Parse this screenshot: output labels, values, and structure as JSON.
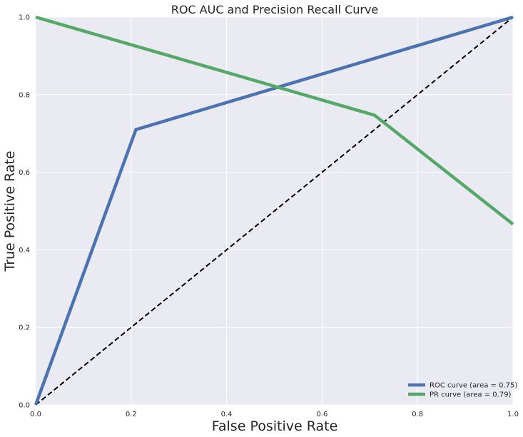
{
  "chart_data": {
    "type": "line",
    "title": "ROC AUC and Precision Recall Curve",
    "xlabel": "False Positive Rate",
    "ylabel": "True Positive Rate",
    "xlim": [
      0,
      1
    ],
    "ylim": [
      0,
      1
    ],
    "grid": true,
    "legend_position": "lower-right",
    "x_ticks": [
      "0.0",
      "0.2",
      "0.4",
      "0.6",
      "0.8",
      "1.0"
    ],
    "y_ticks": [
      "0.0",
      "0.2",
      "0.4",
      "0.6",
      "0.8",
      "1.0"
    ],
    "series": [
      {
        "name": "ROC curve (area = 0.75)",
        "color": "#4c72b0",
        "x": [
          0.0,
          0.21,
          1.0
        ],
        "y": [
          0.0,
          0.71,
          1.0
        ]
      },
      {
        "name": "PR curve (area = 0.79)",
        "color": "#55a868",
        "x": [
          0.0,
          0.71,
          1.0
        ],
        "y": [
          1.0,
          0.747,
          0.466
        ]
      }
    ],
    "reference_line": {
      "color": "#000000",
      "style": "dashed",
      "x": [
        0,
        1
      ],
      "y": [
        0,
        1
      ]
    }
  }
}
